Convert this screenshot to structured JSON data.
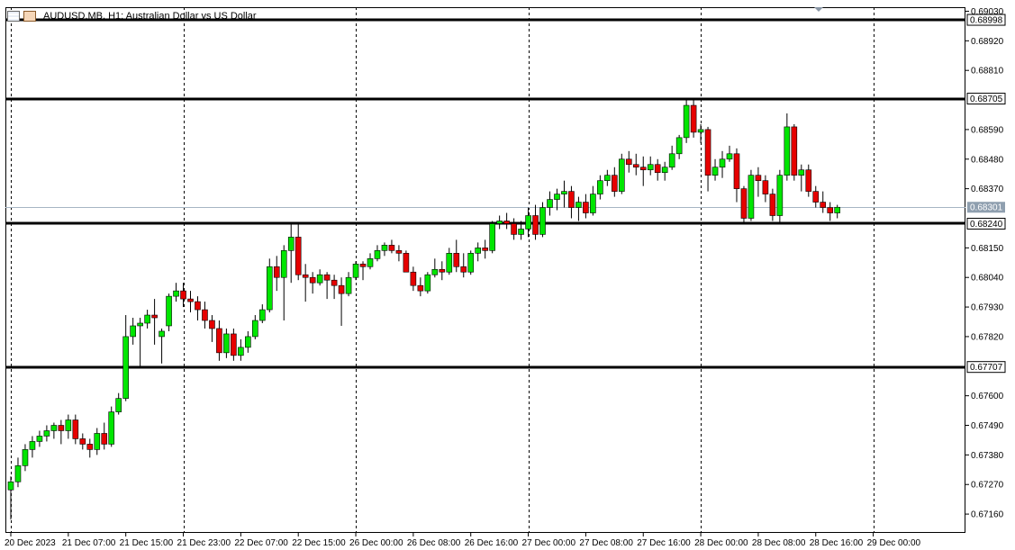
{
  "header": {
    "title": "AUDUSD.MB, H1:  Australian Dollar vs US Dollar",
    "icons": [
      "menu-icon",
      "chart-type-icon"
    ]
  },
  "colors": {
    "bull": "#00e600",
    "bear": "#e60000",
    "wick": "#000000",
    "hline": "#000000",
    "bidline": "#a7b5c3",
    "grid": "#000000"
  },
  "chart_data": {
    "type": "candlestick",
    "symbol": "AUDUSD.MB",
    "timeframe": "H1",
    "ylim": [
      0.6709,
      0.69045
    ],
    "y_ticks": [
      "0.69030",
      "0.68920",
      "0.68810",
      "0.68590",
      "0.68480",
      "0.68370",
      "0.68150",
      "0.68040",
      "0.67930",
      "0.67820",
      "0.67600",
      "0.67490",
      "0.67380",
      "0.67270",
      "0.67160"
    ],
    "x_ticks": [
      {
        "label": "20 Dec 2023",
        "index": 0
      },
      {
        "label": "21 Dec 07:00",
        "index": 8
      },
      {
        "label": "21 Dec 15:00",
        "index": 16
      },
      {
        "label": "21 Dec 23:00",
        "index": 24
      },
      {
        "label": "22 Dec 07:00",
        "index": 32
      },
      {
        "label": "22 Dec 15:00",
        "index": 40
      },
      {
        "label": "26 Dec 00:00",
        "index": 48
      },
      {
        "label": "26 Dec 08:00",
        "index": 56
      },
      {
        "label": "26 Dec 16:00",
        "index": 64
      },
      {
        "label": "27 Dec 00:00",
        "index": 72
      },
      {
        "label": "27 Dec 08:00",
        "index": 80
      },
      {
        "label": "27 Dec 16:00",
        "index": 88
      },
      {
        "label": "28 Dec 00:00",
        "index": 96
      },
      {
        "label": "28 Dec 08:00",
        "index": 104
      },
      {
        "label": "28 Dec 16:00",
        "index": 112
      },
      {
        "label": "29 Dec 00:00",
        "index": 120
      }
    ],
    "grid_lines_at": [
      0,
      24,
      48,
      72,
      96,
      120
    ],
    "horizontal_levels": [
      {
        "price": 0.68998,
        "label": "0.68998"
      },
      {
        "price": 0.68705,
        "label": "0.68705"
      },
      {
        "price": 0.6824,
        "label": "0.68240"
      },
      {
        "price": 0.67707,
        "label": "0.67707"
      }
    ],
    "bid": {
      "price": 0.68301,
      "label": "0.68301"
    },
    "candles": [
      [
        0.6725,
        0.673,
        0.6714,
        0.6728
      ],
      [
        0.6728,
        0.6737,
        0.6726,
        0.6734
      ],
      [
        0.6734,
        0.6742,
        0.6732,
        0.674
      ],
      [
        0.674,
        0.6745,
        0.6737,
        0.6743
      ],
      [
        0.6743,
        0.6747,
        0.6741,
        0.6745
      ],
      [
        0.6745,
        0.6749,
        0.6743,
        0.6747
      ],
      [
        0.6747,
        0.675,
        0.6744,
        0.6749
      ],
      [
        0.6749,
        0.6751,
        0.6742,
        0.6747
      ],
      [
        0.6747,
        0.6753,
        0.6744,
        0.6751
      ],
      [
        0.6751,
        0.6753,
        0.6742,
        0.6744
      ],
      [
        0.6744,
        0.6746,
        0.674,
        0.6742
      ],
      [
        0.6742,
        0.6744,
        0.6737,
        0.674
      ],
      [
        0.674,
        0.6748,
        0.6738,
        0.6746
      ],
      [
        0.6746,
        0.675,
        0.674,
        0.6742
      ],
      [
        0.6742,
        0.6756,
        0.6741,
        0.6754
      ],
      [
        0.6754,
        0.6761,
        0.6753,
        0.6759
      ],
      [
        0.6759,
        0.679,
        0.6758,
        0.6782
      ],
      [
        0.6782,
        0.6789,
        0.6779,
        0.6786
      ],
      [
        0.6786,
        0.6789,
        0.6771,
        0.6787
      ],
      [
        0.6787,
        0.6792,
        0.6785,
        0.679
      ],
      [
        0.679,
        0.6796,
        0.6779,
        0.6789
      ],
      [
        0.6782,
        0.6785,
        0.6772,
        0.6784
      ],
      [
        0.6786,
        0.6798,
        0.6784,
        0.6797
      ],
      [
        0.6797,
        0.6802,
        0.6795,
        0.6799
      ],
      [
        0.6799,
        0.6802,
        0.6793,
        0.6796
      ],
      [
        0.6796,
        0.6799,
        0.6791,
        0.6795
      ],
      [
        0.6795,
        0.6797,
        0.6788,
        0.6792
      ],
      [
        0.6792,
        0.6795,
        0.6785,
        0.6788
      ],
      [
        0.6788,
        0.679,
        0.678,
        0.6785
      ],
      [
        0.6785,
        0.6788,
        0.6773,
        0.6776
      ],
      [
        0.6776,
        0.6785,
        0.6774,
        0.6783
      ],
      [
        0.6783,
        0.6785,
        0.6773,
        0.6775
      ],
      [
        0.6775,
        0.6781,
        0.6773,
        0.6778
      ],
      [
        0.6778,
        0.6784,
        0.6776,
        0.6782
      ],
      [
        0.6782,
        0.679,
        0.6781,
        0.6788
      ],
      [
        0.6788,
        0.6794,
        0.6787,
        0.6792
      ],
      [
        0.6792,
        0.6811,
        0.6791,
        0.6808
      ],
      [
        0.6808,
        0.6812,
        0.6799,
        0.6804
      ],
      [
        0.6804,
        0.6816,
        0.6788,
        0.6814
      ],
      [
        0.6814,
        0.6824,
        0.6802,
        0.6819
      ],
      [
        0.6819,
        0.6824,
        0.6803,
        0.6805
      ],
      [
        0.6805,
        0.6809,
        0.6795,
        0.6804
      ],
      [
        0.6804,
        0.6806,
        0.6798,
        0.6802
      ],
      [
        0.6802,
        0.6807,
        0.6801,
        0.6805
      ],
      [
        0.6805,
        0.6806,
        0.6796,
        0.6803
      ],
      [
        0.6803,
        0.6805,
        0.6796,
        0.6801
      ],
      [
        0.6801,
        0.6804,
        0.6786,
        0.6798
      ],
      [
        0.6798,
        0.6806,
        0.6797,
        0.6804
      ],
      [
        0.6804,
        0.681,
        0.6803,
        0.6809
      ],
      [
        0.6809,
        0.681,
        0.6803,
        0.6808
      ],
      [
        0.6808,
        0.6813,
        0.6807,
        0.6811
      ],
      [
        0.6811,
        0.6816,
        0.681,
        0.6814
      ],
      [
        0.6814,
        0.6817,
        0.6812,
        0.6816
      ],
      [
        0.6816,
        0.6818,
        0.6813,
        0.6814
      ],
      [
        0.6814,
        0.6816,
        0.681,
        0.6813
      ],
      [
        0.6813,
        0.6814,
        0.6806,
        0.6806
      ],
      [
        0.6806,
        0.6808,
        0.6799,
        0.6801
      ],
      [
        0.6801,
        0.6804,
        0.6797,
        0.6799
      ],
      [
        0.6799,
        0.6806,
        0.6798,
        0.6805
      ],
      [
        0.6805,
        0.6811,
        0.6804,
        0.6807
      ],
      [
        0.6807,
        0.681,
        0.6803,
        0.6806
      ],
      [
        0.6806,
        0.6815,
        0.6805,
        0.6813
      ],
      [
        0.6813,
        0.6818,
        0.6806,
        0.6808
      ],
      [
        0.6808,
        0.6813,
        0.6804,
        0.6806
      ],
      [
        0.6806,
        0.6814,
        0.6805,
        0.6813
      ],
      [
        0.6813,
        0.6817,
        0.681,
        0.6815
      ],
      [
        0.6815,
        0.6818,
        0.6811,
        0.6814
      ],
      [
        0.6814,
        0.6825,
        0.6813,
        0.6824
      ],
      [
        0.6824,
        0.6827,
        0.6822,
        0.6825
      ],
      [
        0.6825,
        0.6828,
        0.6822,
        0.6824
      ],
      [
        0.6824,
        0.6826,
        0.6818,
        0.682
      ],
      [
        0.682,
        0.6825,
        0.6818,
        0.6822
      ],
      [
        0.6822,
        0.683,
        0.6819,
        0.6827
      ],
      [
        0.6827,
        0.6831,
        0.6818,
        0.682
      ],
      [
        0.682,
        0.6832,
        0.6819,
        0.683
      ],
      [
        0.683,
        0.6836,
        0.6827,
        0.6833
      ],
      [
        0.6833,
        0.6837,
        0.6829,
        0.6835
      ],
      [
        0.6835,
        0.684,
        0.683,
        0.6836
      ],
      [
        0.6836,
        0.6838,
        0.6826,
        0.683
      ],
      [
        0.683,
        0.6834,
        0.6825,
        0.6832
      ],
      [
        0.6832,
        0.6835,
        0.6826,
        0.6828
      ],
      [
        0.6828,
        0.6838,
        0.6827,
        0.6835
      ],
      [
        0.6835,
        0.6842,
        0.6833,
        0.684
      ],
      [
        0.684,
        0.6844,
        0.6838,
        0.6842
      ],
      [
        0.6842,
        0.6845,
        0.6834,
        0.6836
      ],
      [
        0.6836,
        0.685,
        0.6835,
        0.6848
      ],
      [
        0.6848,
        0.6851,
        0.6843,
        0.6846
      ],
      [
        0.6846,
        0.685,
        0.6842,
        0.6845
      ],
      [
        0.6845,
        0.6849,
        0.6838,
        0.6844
      ],
      [
        0.6844,
        0.6849,
        0.6842,
        0.6846
      ],
      [
        0.6846,
        0.6848,
        0.684,
        0.6843
      ],
      [
        0.6843,
        0.6847,
        0.684,
        0.6845
      ],
      [
        0.6845,
        0.6853,
        0.6844,
        0.685
      ],
      [
        0.685,
        0.6857,
        0.6848,
        0.6856
      ],
      [
        0.6856,
        0.68705,
        0.6854,
        0.6868
      ],
      [
        0.6868,
        0.68705,
        0.6856,
        0.6858
      ],
      [
        0.6858,
        0.6861,
        0.6854,
        0.6859
      ],
      [
        0.6859,
        0.686,
        0.6836,
        0.6842
      ],
      [
        0.6842,
        0.6848,
        0.684,
        0.6845
      ],
      [
        0.6845,
        0.6851,
        0.6841,
        0.6848
      ],
      [
        0.6848,
        0.6853,
        0.6847,
        0.685
      ],
      [
        0.685,
        0.6852,
        0.6832,
        0.6837
      ],
      [
        0.6837,
        0.6838,
        0.6824,
        0.6826
      ],
      [
        0.6826,
        0.6844,
        0.6825,
        0.6842
      ],
      [
        0.6842,
        0.6845,
        0.6834,
        0.684
      ],
      [
        0.684,
        0.6842,
        0.6832,
        0.6835
      ],
      [
        0.6835,
        0.6837,
        0.6825,
        0.6827
      ],
      [
        0.6827,
        0.6844,
        0.6824,
        0.6842
      ],
      [
        0.6842,
        0.6865,
        0.684,
        0.686
      ],
      [
        0.686,
        0.6861,
        0.684,
        0.6842
      ],
      [
        0.6842,
        0.6846,
        0.6836,
        0.6844
      ],
      [
        0.6844,
        0.6846,
        0.6834,
        0.6836
      ],
      [
        0.6836,
        0.6838,
        0.683,
        0.6832
      ],
      [
        0.6832,
        0.6836,
        0.6828,
        0.683
      ],
      [
        0.683,
        0.6832,
        0.6825,
        0.6828
      ],
      [
        0.6828,
        0.6831,
        0.6826,
        0.68301
      ]
    ]
  }
}
